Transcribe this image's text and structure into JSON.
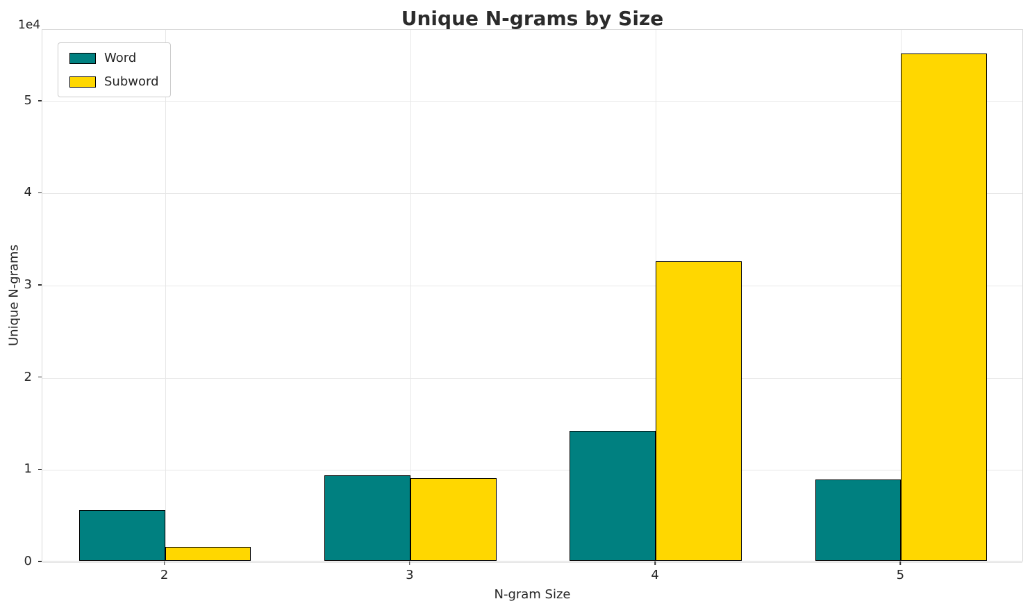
{
  "chart_data": {
    "type": "bar",
    "title": "Unique N-grams by Size",
    "xlabel": "N-gram Size",
    "ylabel": "Unique N-grams",
    "y_multiplier": "1e4",
    "categories": [
      "2",
      "3",
      "4",
      "5"
    ],
    "series": [
      {
        "name": "Word",
        "color": "#008080",
        "values": [
          5500,
          9300,
          14100,
          8800
        ]
      },
      {
        "name": "Subword",
        "color": "#FFD700",
        "values": [
          1500,
          9000,
          32500,
          55000
        ]
      }
    ],
    "ylim": [
      0,
      57750
    ],
    "yticks": [
      0,
      10000,
      20000,
      30000,
      40000,
      50000
    ],
    "ytick_labels": [
      "0",
      "1",
      "2",
      "3",
      "4",
      "5"
    ],
    "grid": true,
    "legend_position": "upper left",
    "bar_edge_color": "#000000",
    "grid_color": "#e7e7e7"
  }
}
